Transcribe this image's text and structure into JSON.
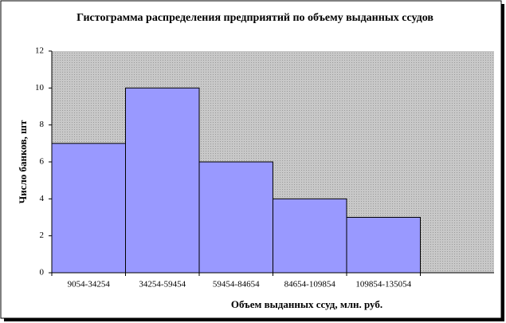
{
  "chart_data": {
    "type": "bar",
    "title": "Гистограмма распределения предприятий по объему выданных ссудов",
    "x_label": "Объем выданных ссуд, млн. руб.",
    "y_label": "Число банков, шт",
    "categories": [
      "9054-34254",
      "34254-59454",
      "59454-84654",
      "84654-109854",
      "109854-135054",
      null
    ],
    "values": [
      7,
      10,
      6,
      4,
      3,
      null
    ],
    "color": "#9999ff",
    "ylim": [
      0,
      12
    ],
    "yticks": [
      0,
      2,
      4,
      6,
      8,
      10,
      12
    ],
    "grid": false
  }
}
